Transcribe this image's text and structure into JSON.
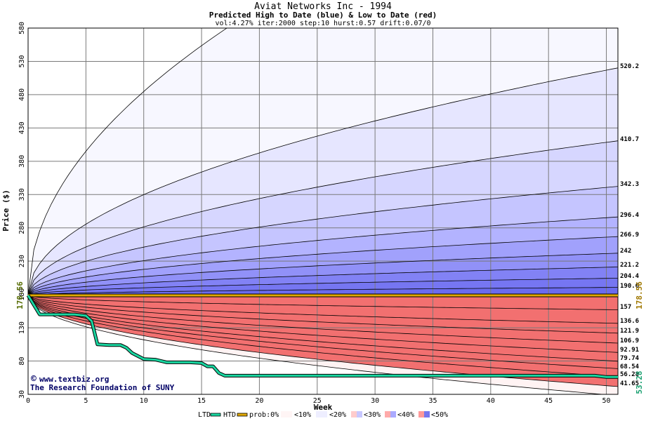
{
  "chart_data": {
    "type": "area",
    "title": "Aviat Networks Inc - 1994",
    "subtitle": "Predicted High to Date (blue) &  Low to Date (red)",
    "params": "vol:4.27% iter:2000 step:10 hurst:0.57 drift:0.07/0",
    "xlabel": "Week",
    "ylabel": "Price ($)",
    "xlim": [
      0,
      51
    ],
    "ylim": [
      30,
      580
    ],
    "x_ticks": [
      0,
      5,
      10,
      15,
      20,
      25,
      30,
      35,
      40,
      45,
      50
    ],
    "y_ticks": [
      30,
      80,
      130,
      180,
      230,
      280,
      330,
      380,
      430,
      480,
      530,
      580
    ],
    "start_price": 178.56,
    "start_label": "178.56",
    "right_price_label": "178.56",
    "ltd_final_label": "53.28",
    "high_band_ends": [
      520.2,
      410.7,
      342.3,
      296.4,
      266.9,
      242,
      221.2,
      204.4,
      190.6
    ],
    "high_band_labels": [
      "520.2",
      "410.7",
      "342.3",
      "296.4",
      "266.9",
      "242",
      "221.2",
      "204.4",
      "190.6"
    ],
    "low_band_ends": [
      157,
      136.6,
      121.9,
      106.9,
      92.91,
      79.74,
      68.54,
      56.28,
      41.65
    ],
    "low_band_labels": [
      "157",
      "136.6",
      "121.9",
      "106.9",
      "92.91",
      "79.74",
      "68.54",
      "56.28",
      "41.65"
    ],
    "outer_high_end": 870,
    "outer_low_end": 28,
    "ltd_series": {
      "name": "LTD",
      "x": [
        0,
        1,
        2,
        3,
        4,
        5,
        5.5,
        6,
        7,
        8,
        8.5,
        9,
        10,
        11,
        11.5,
        12,
        13,
        14,
        15,
        15.5,
        16,
        16.5,
        17,
        18,
        19,
        20,
        21,
        22,
        23,
        24,
        25,
        26,
        27,
        28,
        29,
        30,
        31,
        32,
        33,
        34,
        35,
        36,
        37,
        38,
        39,
        40,
        41,
        42,
        43,
        44,
        45,
        46,
        47,
        48,
        49,
        50,
        51
      ],
      "y": [
        178.56,
        150,
        150,
        150,
        150,
        148,
        140,
        105,
        104,
        104,
        100,
        92,
        83,
        82,
        80,
        78,
        78,
        78,
        77,
        72,
        72,
        62,
        58,
        58,
        58,
        58,
        58,
        58,
        58,
        58,
        58,
        58,
        58,
        58,
        58,
        58,
        58,
        58,
        58,
        58,
        58,
        58,
        58,
        58,
        58,
        58,
        58,
        58,
        58,
        58,
        58,
        58,
        58,
        58,
        58,
        56,
        56
      ]
    },
    "htd_series": {
      "name": "HTD",
      "x": [
        0,
        51
      ],
      "y": [
        178.56,
        178.56
      ]
    },
    "legend": {
      "items": [
        "LTD",
        "HTD",
        "prob:0%",
        "<10%",
        "<20%",
        "<30%",
        "<40%",
        "<50%"
      ]
    },
    "colors": {
      "ltd": "#19d6a0",
      "htd": "#e0a800",
      "high_bands": [
        "#f7f7ff",
        "#e6e6ff",
        "#d6d6ff",
        "#c5c5ff",
        "#b3b3ff",
        "#a1a1fc",
        "#9191f8",
        "#8282f5",
        "#7676f2",
        "#6b6bef"
      ],
      "low_bands": [
        "#fff3f3",
        "#ffe6e6",
        "#ffd6d6",
        "#ffc6c6",
        "#ffb5b5",
        "#fca3a3",
        "#f99393",
        "#f68585",
        "#f47878",
        "#f27070"
      ],
      "legend_swatches": [
        "#fff5f5",
        "#eeeeff",
        "#ffcccc",
        "#c8c8ff",
        "#ff9999",
        "#7777ee"
      ]
    }
  },
  "watermark": {
    "copyright_symbol": "©",
    "line1": "www.textbiz.org",
    "line2": "The Research Foundation of SUNY"
  }
}
